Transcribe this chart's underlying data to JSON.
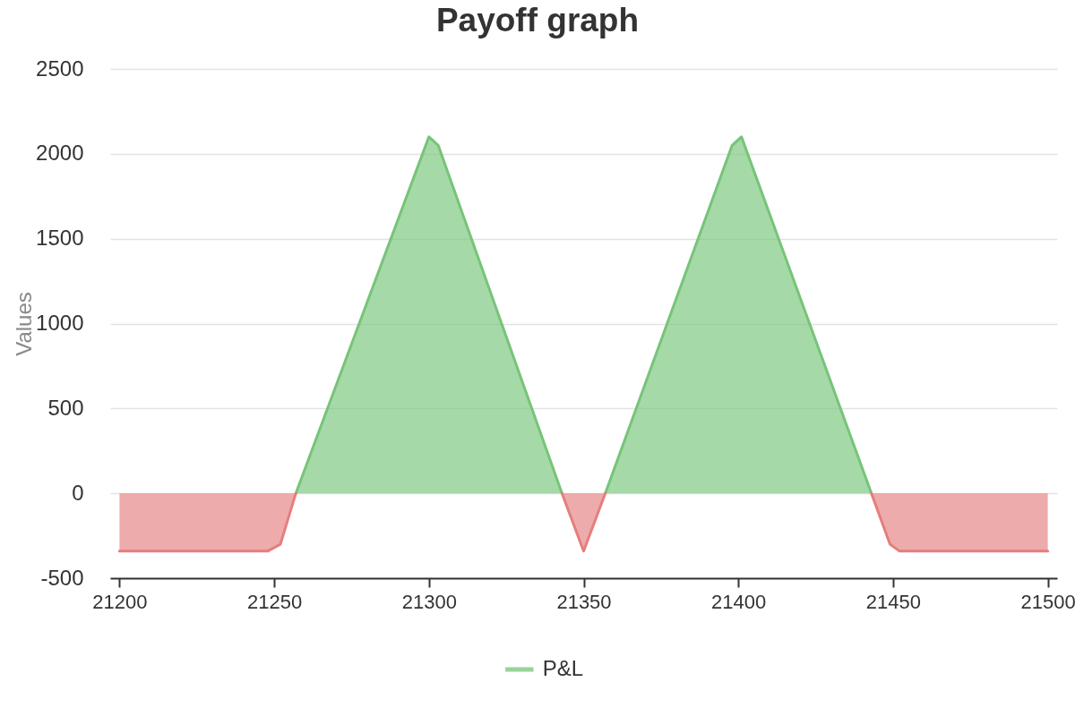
{
  "chart_data": {
    "type": "area",
    "title": "Payoff graph",
    "ylabel": "Values",
    "xlim": [
      21197,
      21503
    ],
    "xticks": [
      21200,
      21250,
      21300,
      21350,
      21400,
      21450,
      21500
    ],
    "ylim": [
      -500,
      2500
    ],
    "yticks": [
      -500,
      0,
      500,
      1000,
      1500,
      2000,
      2500
    ],
    "grid": "y",
    "legend": "bottom",
    "series": [
      {
        "name": "P&L",
        "color": "#77c479",
        "x": [
          21257,
          21300,
          21303,
          21343,
          21350,
          21357,
          21398,
          21401,
          21443
        ],
        "values": [
          0,
          2100,
          2050,
          0,
          null,
          0,
          2050,
          2100,
          0
        ]
      },
      {
        "color": "#e57e7e",
        "x": [
          21200,
          21248,
          21252,
          21257,
          21300,
          21343,
          21350,
          21357,
          21400,
          21443,
          21449,
          21452,
          21500
        ],
        "values": [
          -340,
          -340,
          -300,
          0,
          null,
          0,
          -340,
          0,
          null,
          0,
          -300,
          -340,
          -340
        ]
      }
    ]
  }
}
